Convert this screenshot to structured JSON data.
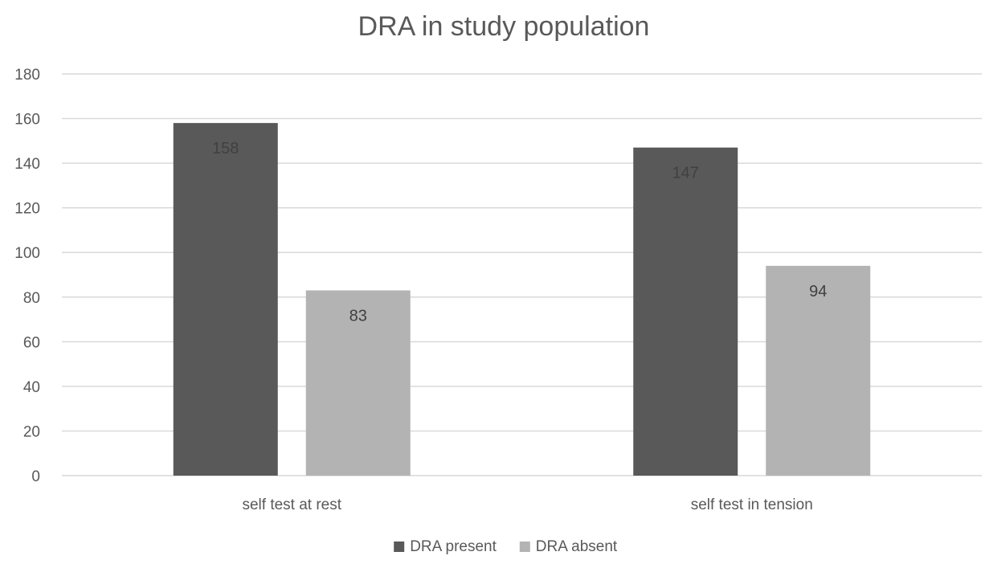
{
  "chart_data": {
    "type": "bar",
    "title": "DRA in study population",
    "categories": [
      "self test at rest",
      "self test in tension"
    ],
    "series": [
      {
        "name": "DRA present",
        "values": [
          158,
          147
        ],
        "color": "#595959"
      },
      {
        "name": "DRA absent",
        "values": [
          83,
          94
        ],
        "color": "#b3b3b3"
      }
    ],
    "y_ticks": [
      0,
      20,
      40,
      60,
      80,
      100,
      120,
      140,
      160,
      180
    ],
    "ylim": [
      0,
      180
    ],
    "grid": true,
    "legend_position": "bottom",
    "data_labels": true,
    "data_label_color": "#404040",
    "axis_text_color": "#595959",
    "gridline_color": "#d9d9d9"
  }
}
